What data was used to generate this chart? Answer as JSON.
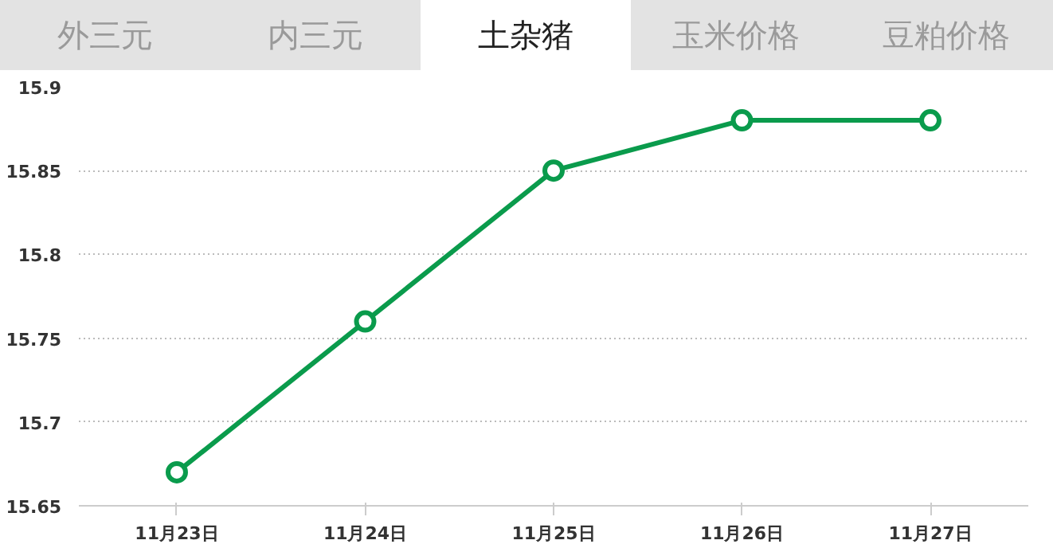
{
  "chart_data": {
    "type": "line",
    "title": "土杂猪",
    "annotations": [
      "外三元",
      "内三元",
      "玉米价格",
      "豆粕价格"
    ],
    "categories": [
      "11月23日",
      "11月24日",
      "11月25日",
      "11月26日",
      "11月27日"
    ],
    "series": [
      {
        "color": "#0a9b4c",
        "values": [
          15.67,
          15.76,
          15.85,
          15.88,
          15.88
        ]
      }
    ],
    "ylim": [
      15.65,
      15.9
    ],
    "yticks": [
      15.65,
      15.7,
      15.75,
      15.8,
      15.85,
      15.9
    ],
    "grid": "y",
    "marker": "circle",
    "line_style": "solid"
  }
}
